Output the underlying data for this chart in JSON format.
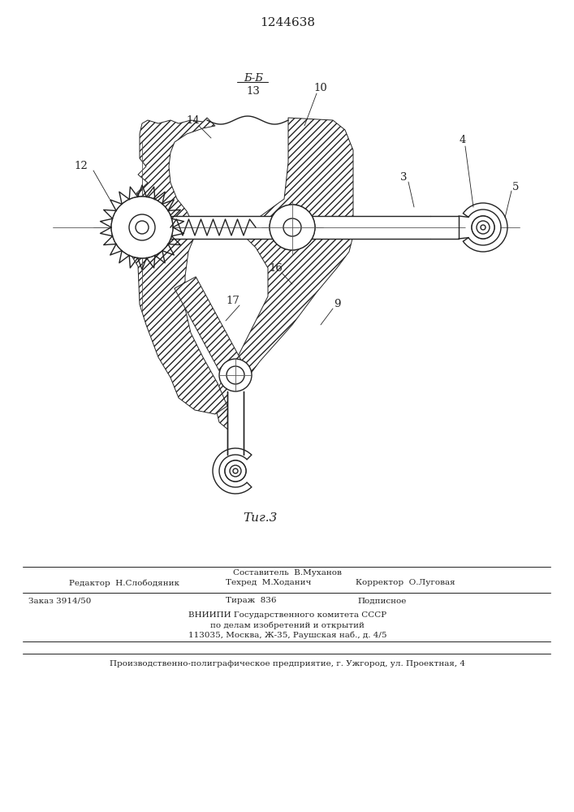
{
  "patent_number": "1244638",
  "figure_label": "Τиг.3",
  "bg_color": "#ffffff",
  "line_color": "#222222",
  "footer": {
    "sestavitel": "Составитель  В.Муханов",
    "redaktor": "Редактор  Н.Слободяник",
    "tekhred": "Техред  М.Ходанич",
    "korrektor": "Корректор  О.Луговая",
    "zakaz": "Заказ 3914/50",
    "tirazh": "Тираж  836",
    "podpisnoe": "Подписное",
    "vniipii_line1": "ВНИИПИ Государственного комитета СССР",
    "vniipii_line2": "по делам изобретений и открытий",
    "vniipii_line3": "113035, Москва, Ж-35, Раушская наб., д. 4/5",
    "proizv": "Производственно-полиграфическое предприятие, г. Ужгород, ул. Проектная, 4"
  }
}
